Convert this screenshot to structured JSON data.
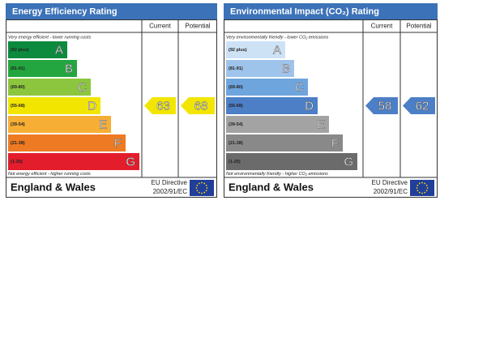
{
  "panels": [
    {
      "title": "Energy Efficiency Rating",
      "columns": [
        "Current",
        "Potential"
      ],
      "top_note": "Very energy efficient - lower running costs",
      "bottom_note": "Not energy efficient - higher running costs",
      "bands": [
        {
          "range": "(92 plus)",
          "letter": "A",
          "color": "#0c8a3e"
        },
        {
          "range": "(81-91)",
          "letter": "B",
          "color": "#23a63f"
        },
        {
          "range": "(69-80)",
          "letter": "C",
          "color": "#8cc63f"
        },
        {
          "range": "(55-68)",
          "letter": "D",
          "color": "#f2e600"
        },
        {
          "range": "(39-54)",
          "letter": "E",
          "color": "#f6ae35"
        },
        {
          "range": "(21-38)",
          "letter": "F",
          "color": "#ee7a24"
        },
        {
          "range": "(1-20)",
          "letter": "G",
          "color": "#e31d2c"
        }
      ],
      "current": 63,
      "potential": 68,
      "arrow_color": "#f2e600",
      "footer": {
        "region": "England & Wales",
        "directive": "EU Directive",
        "directive_code": "2002/91/EC"
      }
    },
    {
      "title": "Environmental Impact (CO₂) Rating",
      "columns": [
        "Current",
        "Potential"
      ],
      "top_note": "Very environmentally friendly - lower CO₂ emissions",
      "bottom_note": "Not environmentally friendly - higher CO₂ emissions",
      "bands": [
        {
          "range": "(92 plus)",
          "letter": "A",
          "color": "#cde2f5"
        },
        {
          "range": "(81-91)",
          "letter": "B",
          "color": "#9fc4eb"
        },
        {
          "range": "(69-80)",
          "letter": "C",
          "color": "#6ea5dd"
        },
        {
          "range": "(55-68)",
          "letter": "D",
          "color": "#4c7fc6"
        },
        {
          "range": "(39-54)",
          "letter": "E",
          "color": "#a3a3a3"
        },
        {
          "range": "(21-38)",
          "letter": "F",
          "color": "#898989"
        },
        {
          "range": "(1-20)",
          "letter": "G",
          "color": "#6b6b6b"
        }
      ],
      "current": 58,
      "potential": 62,
      "arrow_color": "#4c7fc6",
      "footer": {
        "region": "England & Wales",
        "directive": "EU Directive",
        "directive_code": "2002/91/EC"
      }
    }
  ]
}
